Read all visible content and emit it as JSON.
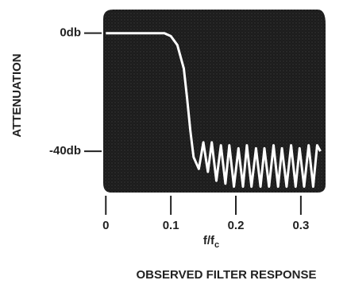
{
  "chart_data": {
    "type": "line",
    "y_label": "ATTENUATION",
    "x_label": {
      "text": "f/f",
      "subscript": "c"
    },
    "caption": "OBSERVED FILTER RESPONSE",
    "x": [
      0,
      0.05,
      0.09,
      0.1,
      0.11,
      0.12,
      0.125,
      0.13,
      0.135,
      0.143,
      0.15,
      0.157,
      0.163,
      0.17,
      0.177,
      0.184,
      0.19,
      0.197,
      0.204,
      0.211,
      0.217,
      0.224,
      0.231,
      0.238,
      0.244,
      0.251,
      0.258,
      0.265,
      0.271,
      0.278,
      0.285,
      0.292,
      0.298,
      0.305,
      0.312,
      0.319,
      0.325,
      0.33
    ],
    "values": [
      0,
      0,
      0,
      -1,
      -4,
      -12,
      -22,
      -33,
      -42,
      -46,
      -37,
      -47,
      -37,
      -50,
      -38,
      -51,
      -38,
      -52,
      -39,
      -52,
      -38,
      -52,
      -39,
      -52,
      -39,
      -52,
      -38,
      -52,
      -39,
      -52,
      -38,
      -52,
      -39,
      -52,
      -38,
      -52,
      -38,
      -40
    ],
    "color": "#ffffff",
    "xlim": [
      -0.004,
      0.338
    ],
    "ylim": [
      -54,
      8
    ],
    "xticks": [
      0,
      0.1,
      0.2,
      0.3
    ],
    "yticks": [
      {
        "value": 0,
        "label": "0db"
      },
      {
        "value": -40,
        "label": "-40db"
      }
    ]
  }
}
